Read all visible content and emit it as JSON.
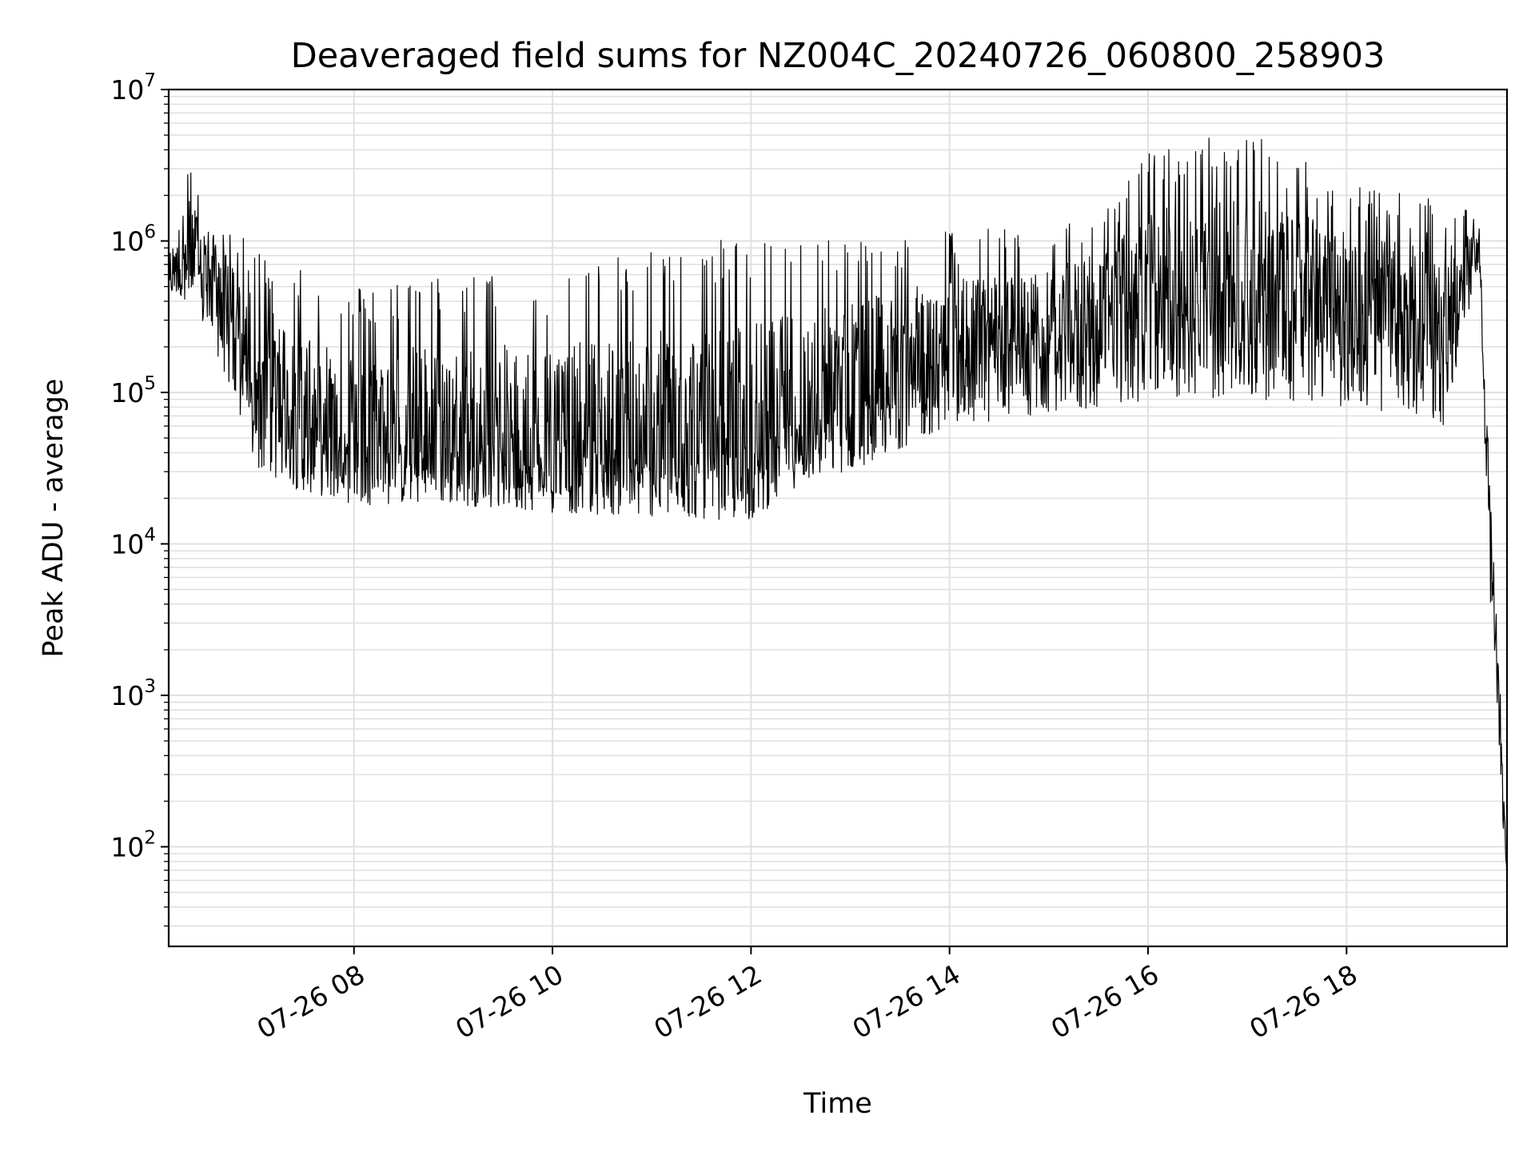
{
  "chart_data": {
    "type": "line",
    "title": "Deaveraged field sums for NZ004C_20240726_060800_258903",
    "xlabel": "Time",
    "ylabel": "Peak ADU - average",
    "yscale": "log",
    "ylim": [
      22,
      10000000
    ],
    "xlim": [
      "2024-07-26 06:08",
      "2024-07-26 19:37"
    ],
    "x_ticks": [
      {
        "time": "2024-07-26 08:00",
        "label": "07-26 08"
      },
      {
        "time": "2024-07-26 10:00",
        "label": "07-26 10"
      },
      {
        "time": "2024-07-26 12:00",
        "label": "07-26 12"
      },
      {
        "time": "2024-07-26 14:00",
        "label": "07-26 14"
      },
      {
        "time": "2024-07-26 16:00",
        "label": "07-26 16"
      },
      {
        "time": "2024-07-26 18:00",
        "label": "07-26 18"
      }
    ],
    "y_ticks": [
      {
        "value": 100,
        "base": "10",
        "exp": "2"
      },
      {
        "value": 1000,
        "base": "10",
        "exp": "3"
      },
      {
        "value": 10000,
        "base": "10",
        "exp": "4"
      },
      {
        "value": 100000,
        "base": "10",
        "exp": "5"
      },
      {
        "value": 1000000,
        "base": "10",
        "exp": "6"
      },
      {
        "value": 10000000,
        "base": "10",
        "exp": "7"
      }
    ],
    "grid": true,
    "line_color": "#000000",
    "grid_color": "#e0e0e0",
    "series": [
      {
        "envelope": [
          {
            "t": "06:08",
            "low": 450000,
            "mid": 600000,
            "high": 1000000
          },
          {
            "t": "06:20",
            "low": 400000,
            "mid": 800000,
            "high": 3500000
          },
          {
            "t": "06:40",
            "low": 150000,
            "mid": 500000,
            "high": 1400000
          },
          {
            "t": "07:00",
            "low": 30000,
            "mid": 130000,
            "high": 900000
          },
          {
            "t": "07:30",
            "low": 22000,
            "mid": 60000,
            "high": 700000
          },
          {
            "t": "08:00",
            "low": 18000,
            "mid": 50000,
            "high": 500000
          },
          {
            "t": "09:00",
            "low": 18000,
            "mid": 45000,
            "high": 600000
          },
          {
            "t": "10:00",
            "low": 16000,
            "mid": 40000,
            "high": 600000
          },
          {
            "t": "11:00",
            "low": 15000,
            "mid": 38000,
            "high": 900000
          },
          {
            "t": "12:00",
            "low": 14000,
            "mid": 40000,
            "high": 1100000
          },
          {
            "t": "12:30",
            "low": 25000,
            "mid": 70000,
            "high": 1000000
          },
          {
            "t": "13:00",
            "low": 30000,
            "mid": 90000,
            "high": 1100000
          },
          {
            "t": "14:00",
            "low": 60000,
            "mid": 180000,
            "high": 1200000
          },
          {
            "t": "15:00",
            "low": 70000,
            "mid": 220000,
            "high": 1300000
          },
          {
            "t": "15:40",
            "low": 80000,
            "mid": 350000,
            "high": 2000000
          },
          {
            "t": "16:00",
            "low": 90000,
            "mid": 400000,
            "high": 4000000
          },
          {
            "t": "17:00",
            "low": 90000,
            "mid": 450000,
            "high": 5500000
          },
          {
            "t": "18:00",
            "low": 80000,
            "mid": 400000,
            "high": 2500000
          },
          {
            "t": "19:00",
            "low": 60000,
            "mid": 300000,
            "high": 1800000
          },
          {
            "t": "19:20",
            "low": 700000,
            "mid": 1000000,
            "high": 1500000
          },
          {
            "t": "19:27",
            "low": 3000,
            "mid": 8000,
            "high": 20000
          },
          {
            "t": "19:31",
            "low": 900,
            "mid": 2000,
            "high": 4000
          },
          {
            "t": "19:34",
            "low": 200,
            "mid": 300,
            "high": 500
          },
          {
            "t": "19:37",
            "low": 40,
            "mid": 60,
            "high": 100
          }
        ]
      }
    ]
  }
}
